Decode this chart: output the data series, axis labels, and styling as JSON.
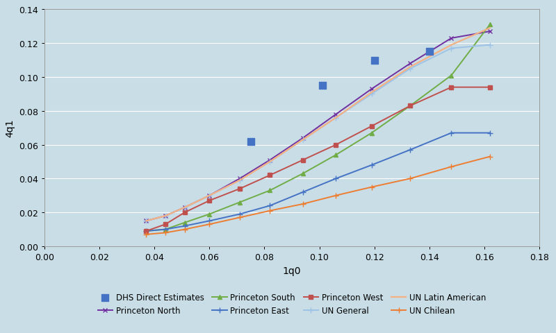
{
  "xlabel": "1q0",
  "ylabel": "4q1",
  "xlim": [
    0,
    0.18
  ],
  "ylim": [
    0,
    0.14
  ],
  "xticks": [
    0,
    0.02,
    0.04,
    0.06,
    0.08,
    0.1,
    0.12,
    0.14,
    0.16,
    0.18
  ],
  "yticks": [
    0,
    0.02,
    0.04,
    0.06,
    0.08,
    0.1,
    0.12,
    0.14
  ],
  "background_color": "#c8dde6",
  "dhs_points": {
    "x": [
      0.075,
      0.101,
      0.12,
      0.14
    ],
    "y": [
      0.062,
      0.095,
      0.11,
      0.115
    ],
    "color": "#4472C4",
    "size": 55,
    "label": "DHS Direct Estimates"
  },
  "series": [
    {
      "name": "Princeton North",
      "x": [
        0.037,
        0.044,
        0.051,
        0.06,
        0.071,
        0.082,
        0.094,
        0.106,
        0.119,
        0.133,
        0.148,
        0.162
      ],
      "y": [
        0.015,
        0.018,
        0.023,
        0.03,
        0.04,
        0.051,
        0.064,
        0.078,
        0.093,
        0.108,
        0.123,
        0.127
      ],
      "color": "#7030A0",
      "marker": "x",
      "markersize": 5,
      "linewidth": 1.4
    },
    {
      "name": "Princeton South",
      "x": [
        0.037,
        0.044,
        0.051,
        0.06,
        0.071,
        0.082,
        0.094,
        0.106,
        0.119,
        0.133,
        0.148,
        0.162
      ],
      "y": [
        0.009,
        0.01,
        0.014,
        0.019,
        0.026,
        0.033,
        0.043,
        0.054,
        0.067,
        0.083,
        0.101,
        0.131
      ],
      "color": "#70AD47",
      "marker": "^",
      "markersize": 5,
      "linewidth": 1.4
    },
    {
      "name": "Princeton East",
      "x": [
        0.037,
        0.044,
        0.051,
        0.06,
        0.071,
        0.082,
        0.094,
        0.106,
        0.119,
        0.133,
        0.148,
        0.162
      ],
      "y": [
        0.009,
        0.01,
        0.012,
        0.015,
        0.019,
        0.024,
        0.032,
        0.04,
        0.048,
        0.057,
        0.067,
        0.067
      ],
      "color": "#4472C4",
      "marker": "+",
      "markersize": 6,
      "linewidth": 1.4
    },
    {
      "name": "Princeton West",
      "x": [
        0.037,
        0.044,
        0.051,
        0.06,
        0.071,
        0.082,
        0.094,
        0.106,
        0.119,
        0.133,
        0.148,
        0.162
      ],
      "y": [
        0.009,
        0.013,
        0.02,
        0.027,
        0.034,
        0.042,
        0.051,
        0.06,
        0.071,
        0.083,
        0.094,
        0.094
      ],
      "color": "#C0504D",
      "marker": "s",
      "markersize": 4,
      "linewidth": 1.4
    },
    {
      "name": "UN General",
      "x": [
        0.037,
        0.044,
        0.051,
        0.06,
        0.071,
        0.082,
        0.094,
        0.106,
        0.119,
        0.133,
        0.148,
        0.162
      ],
      "y": [
        0.015,
        0.018,
        0.023,
        0.03,
        0.039,
        0.05,
        0.063,
        0.076,
        0.09,
        0.105,
        0.117,
        0.119
      ],
      "color": "#9DC3E6",
      "marker": "+",
      "markersize": 6,
      "linewidth": 1.4
    },
    {
      "name": "UN Latin American",
      "x": [
        0.037,
        0.044,
        0.051,
        0.06,
        0.071,
        0.082,
        0.094,
        0.106,
        0.119,
        0.133,
        0.148,
        0.162
      ],
      "y": [
        0.015,
        0.018,
        0.023,
        0.03,
        0.039,
        0.05,
        0.063,
        0.076,
        0.091,
        0.106,
        0.119,
        0.129
      ],
      "color": "#F4B183",
      "marker": null,
      "markersize": 0,
      "linewidth": 1.6
    },
    {
      "name": "UN Chilean",
      "x": [
        0.037,
        0.044,
        0.051,
        0.06,
        0.071,
        0.082,
        0.094,
        0.106,
        0.119,
        0.133,
        0.148,
        0.162
      ],
      "y": [
        0.007,
        0.008,
        0.01,
        0.013,
        0.017,
        0.021,
        0.025,
        0.03,
        0.035,
        0.04,
        0.047,
        0.053
      ],
      "color": "#ED7D31",
      "marker": "+",
      "markersize": 6,
      "linewidth": 1.4
    }
  ],
  "legend_order": [
    "DHS Direct Estimates",
    "Princeton North",
    "Princeton South",
    "Princeton East",
    "Princeton West",
    "UN General",
    "UN Latin American",
    "UN Chilean"
  ]
}
